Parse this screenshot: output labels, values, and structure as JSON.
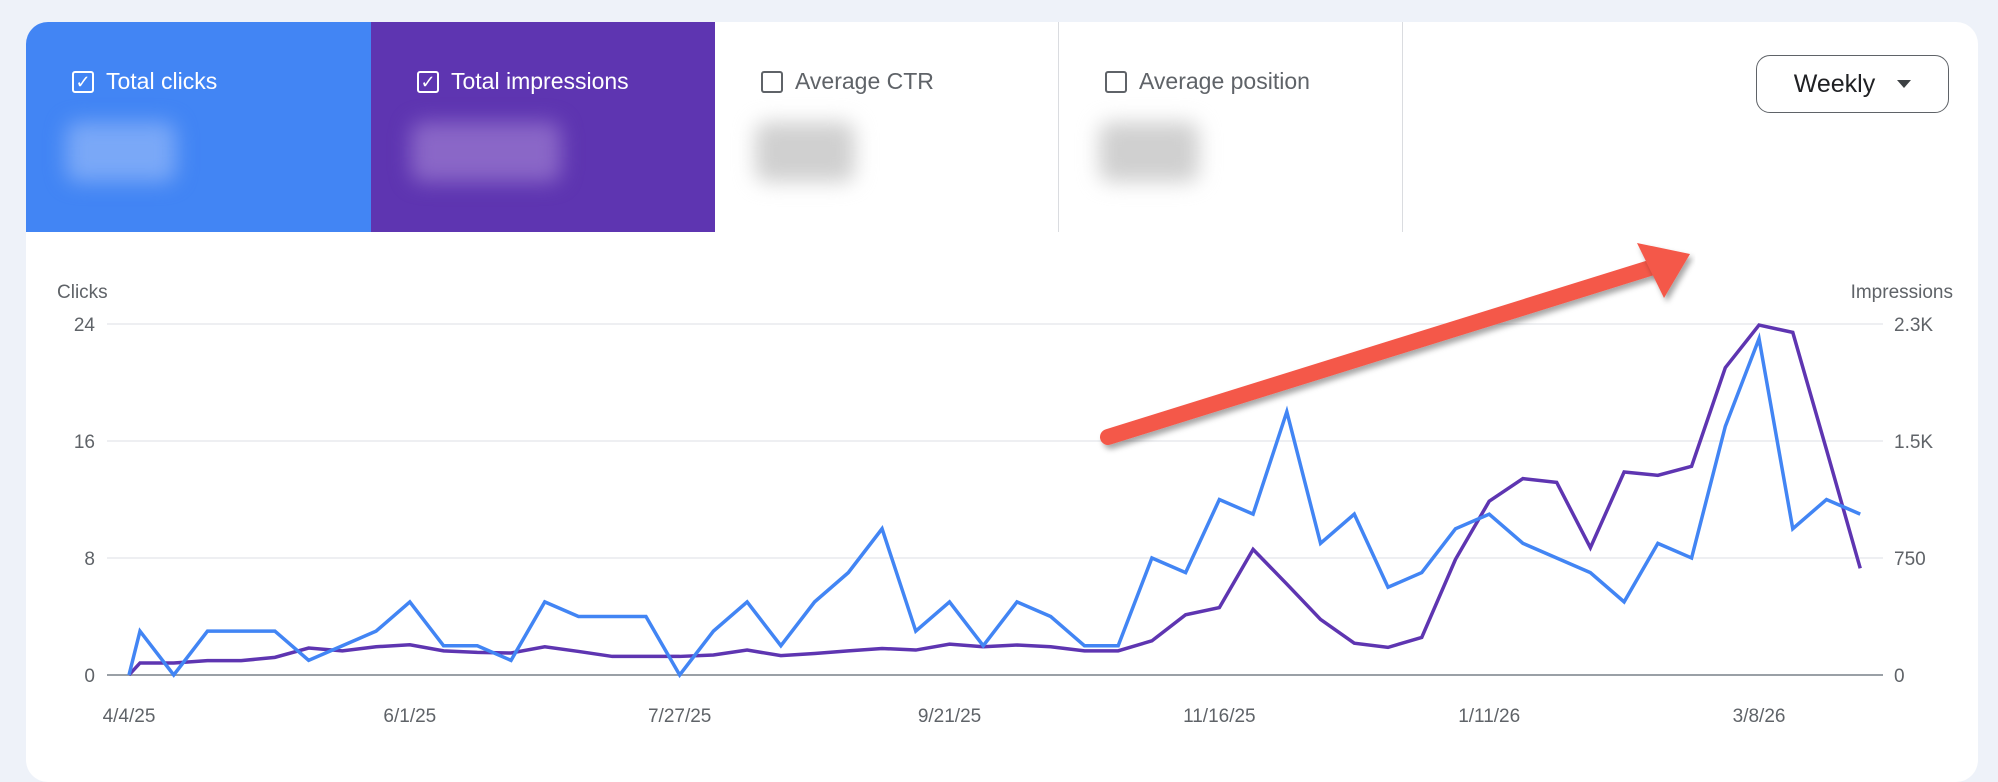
{
  "metrics": [
    {
      "label": "Total clicks",
      "checked": true,
      "color": "#4285f4"
    },
    {
      "label": "Total impressions",
      "checked": true,
      "color": "#5e35b1"
    },
    {
      "label": "Average CTR",
      "checked": false
    },
    {
      "label": "Average position",
      "checked": false
    }
  ],
  "check_glyph": "✓",
  "period_select": {
    "value": "Weekly",
    "icon": "caret-down-icon"
  },
  "annotation": {
    "icon": "red-arrow-trend-up",
    "color": "#f4584a"
  },
  "chart_data": {
    "type": "line",
    "left_axis_label": "Clicks",
    "right_axis_label": "Impressions",
    "left_ticks": [
      "0",
      "8",
      "16",
      "24"
    ],
    "left_ylim": [
      0,
      24
    ],
    "right_ticks": [
      "0",
      "750",
      "1.5K",
      "2.3K"
    ],
    "right_ylim": [
      0,
      2250
    ],
    "x_tick_labels": [
      {
        "index": 0,
        "label": "4/4/25"
      },
      {
        "index": 9,
        "label": "6/1/25"
      },
      {
        "index": 17,
        "label": "7/27/25"
      },
      {
        "index": 25,
        "label": "9/21/25"
      },
      {
        "index": 33,
        "label": "11/16/25"
      },
      {
        "index": 41,
        "label": "1/11/26"
      },
      {
        "index": 49,
        "label": "3/8/26"
      }
    ],
    "grid": true,
    "series": [
      {
        "name": "Total clicks",
        "axis": "left",
        "color": "#4285f4",
        "values": [
          0,
          3,
          0,
          3,
          3,
          3,
          1,
          2,
          3,
          5,
          2,
          2,
          1,
          5,
          4,
          4,
          4,
          0,
          3,
          5,
          2,
          5,
          7,
          10,
          3,
          5,
          2,
          5,
          4,
          2,
          2,
          8,
          7,
          12,
          11,
          18,
          9,
          11,
          6,
          7,
          10,
          11,
          9,
          8,
          7,
          5,
          9,
          8,
          17,
          23,
          10,
          12,
          11
        ]
      },
      {
        "name": "Total impressions",
        "axis": "right",
        "color": "#5e35b1",
        "values": [
          0,
          77,
          77,
          92,
          92,
          113,
          173,
          155,
          181,
          194,
          155,
          145,
          141,
          181,
          151,
          119,
          119,
          119,
          128,
          160,
          124,
          138,
          155,
          170,
          160,
          198,
          181,
          192,
          181,
          155,
          155,
          219,
          386,
          432,
          805,
          583,
          356,
          204,
          177,
          241,
          741,
          1114,
          1259,
          1235,
          816,
          1301,
          1280,
          1338,
          1970,
          2243,
          2196,
          1444,
          684
        ]
      }
    ]
  }
}
